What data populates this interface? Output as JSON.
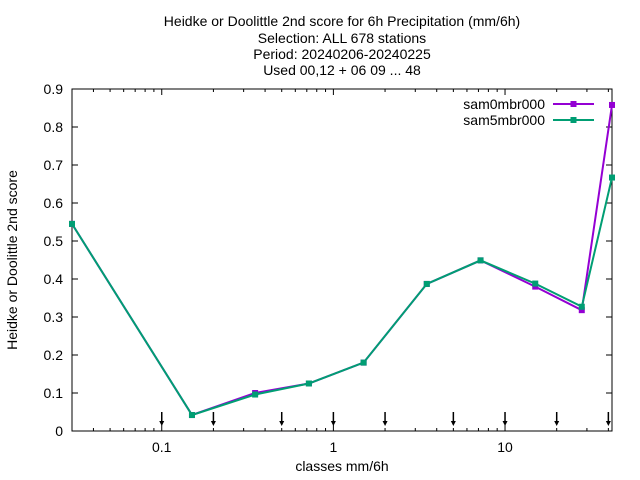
{
  "chart_data": {
    "type": "line",
    "title_lines": [
      "Heidke or Doolittle 2nd score  for 6h Precipitation (mm/6h)",
      "Selection: ALL    678 stations",
      "Period: 20240206-20240225",
      "Used 00,12 + 06 09 ... 48"
    ],
    "xlabel": "classes mm/6h",
    "ylabel": "Heidke or Doolittle 2nd score",
    "xscale": "log",
    "xlim": [
      0.03,
      42
    ],
    "ylim": [
      0,
      0.9
    ],
    "x_ticks": [
      0.1,
      1,
      10
    ],
    "x_tick_labels": [
      "0.1",
      "1",
      "10"
    ],
    "y_ticks": [
      0,
      0.1,
      0.2,
      0.3,
      0.4,
      0.5,
      0.6,
      0.7,
      0.8,
      0.9
    ],
    "y_tick_labels": [
      "0",
      "0.1",
      "0.2",
      "0.3",
      "0.4",
      "0.5",
      "0.6",
      "0.7",
      "0.8",
      "0.9"
    ],
    "threshold_markers": [
      0.1,
      0.2,
      0.5,
      1,
      2,
      5,
      10,
      20,
      40
    ],
    "grid": false,
    "legend_position": "top-right",
    "x": [
      0.03,
      0.15,
      0.35,
      0.72,
      1.5,
      3.5,
      7.2,
      15,
      28,
      42
    ],
    "series": [
      {
        "name": "sam0mbr000",
        "color": "#9400d3",
        "values": [
          0.545,
          0.042,
          0.1,
          0.125,
          0.18,
          0.387,
          0.449,
          0.38,
          0.318,
          0.858
        ]
      },
      {
        "name": "sam5mbr000",
        "color": "#009e73",
        "values": [
          0.545,
          0.042,
          0.096,
          0.125,
          0.18,
          0.387,
          0.449,
          0.388,
          0.327,
          0.667
        ]
      }
    ]
  }
}
